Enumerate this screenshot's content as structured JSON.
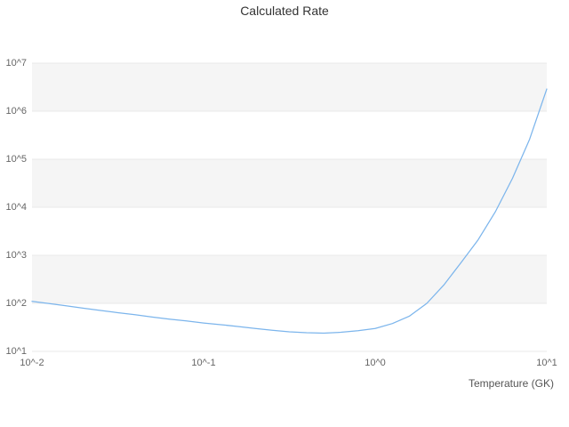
{
  "chart_data": {
    "type": "line",
    "title": "Calculated Rate",
    "xlabel": "Temperature (GK)",
    "ylabel": "",
    "x_scale": "log",
    "y_scale": "log",
    "x_log_range": [
      -2,
      1
    ],
    "y_log_range": [
      1,
      7
    ],
    "x_ticks": [
      {
        "label": "10^-2",
        "value": 0.01
      },
      {
        "label": "10^-1",
        "value": 0.1
      },
      {
        "label": "10^0",
        "value": 1
      },
      {
        "label": "10^1",
        "value": 10
      }
    ],
    "y_ticks": [
      {
        "label": "10^1",
        "value": 10
      },
      {
        "label": "10^2",
        "value": 100
      },
      {
        "label": "10^3",
        "value": 1000
      },
      {
        "label": "10^4",
        "value": 10000
      },
      {
        "label": "10^5",
        "value": 100000
      },
      {
        "label": "10^6",
        "value": 1000000
      },
      {
        "label": "10^7",
        "value": 10000000
      }
    ],
    "legend": "none",
    "grid": "horizontal-bands",
    "band_color": "#f5f5f5",
    "grid_color": "#e9e9e9",
    "line_color": "#7cb5ec",
    "series": [
      {
        "name": "Calculated Rate",
        "points": [
          [
            0.01,
            110
          ],
          [
            0.0126,
            99
          ],
          [
            0.0158,
            89
          ],
          [
            0.02,
            79
          ],
          [
            0.0251,
            71
          ],
          [
            0.0316,
            64
          ],
          [
            0.0398,
            58
          ],
          [
            0.0501,
            52
          ],
          [
            0.0631,
            47
          ],
          [
            0.0794,
            43
          ],
          [
            0.1,
            39
          ],
          [
            0.126,
            36
          ],
          [
            0.158,
            33
          ],
          [
            0.2,
            30
          ],
          [
            0.251,
            27.5
          ],
          [
            0.316,
            25.5
          ],
          [
            0.398,
            24.5
          ],
          [
            0.501,
            24
          ],
          [
            0.631,
            25
          ],
          [
            0.794,
            27
          ],
          [
            1.0,
            30
          ],
          [
            1.26,
            38
          ],
          [
            1.58,
            54
          ],
          [
            2.0,
            100
          ],
          [
            2.51,
            240
          ],
          [
            3.16,
            700
          ],
          [
            3.98,
            2100
          ],
          [
            5.01,
            8000
          ],
          [
            6.31,
            40000
          ],
          [
            7.94,
            260000
          ],
          [
            10.0,
            2900000
          ]
        ]
      }
    ]
  }
}
